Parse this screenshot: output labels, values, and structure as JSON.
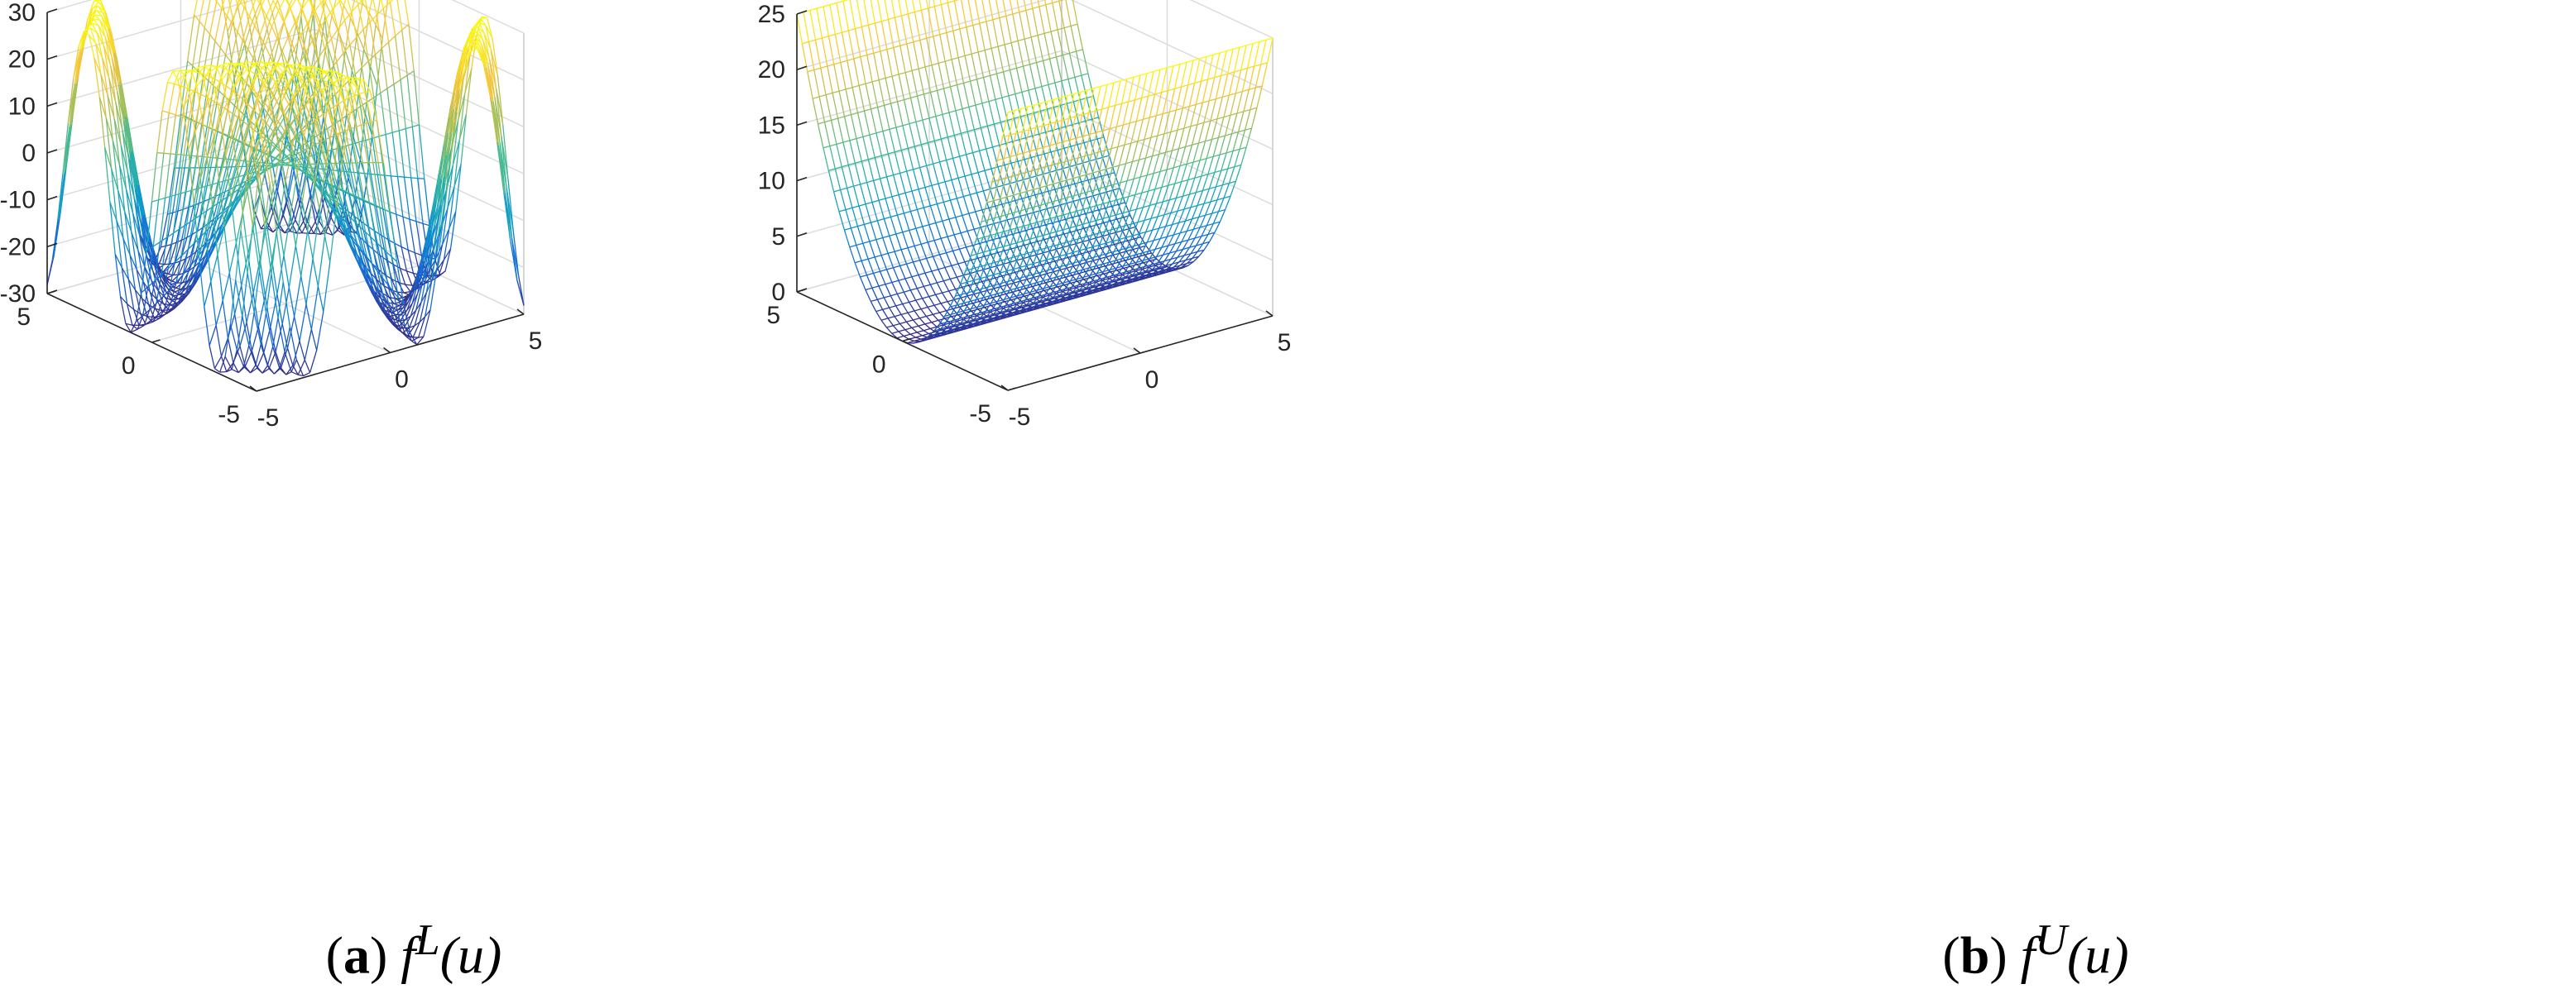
{
  "chart_data": [
    {
      "type": "surface",
      "panel_label": "(a)",
      "caption": "f^L(u)",
      "caption_parts": {
        "tag_open": "(",
        "tag": "a",
        "tag_close": ")",
        "f": "f",
        "sup": "L",
        "arg": "(u)"
      },
      "x": {
        "lim": [
          -5,
          5
        ],
        "ticks": [
          -5,
          0,
          5
        ]
      },
      "y": {
        "lim": [
          -5,
          5
        ],
        "ticks": [
          -5,
          0,
          5
        ]
      },
      "z": {
        "lim": [
          -30,
          30
        ],
        "ticks": [
          -30,
          -20,
          -10,
          0,
          10,
          20,
          30
        ]
      },
      "surface": "z = 30 * sin(0.3 * x * y) over a 41 x 41 grid",
      "colormap": "parula",
      "style": "mesh",
      "grid": true
    },
    {
      "type": "surface",
      "panel_label": "(b)",
      "caption": "f^U(u)",
      "caption_parts": {
        "tag_open": "(",
        "tag": "b",
        "tag_close": ")",
        "f": "f",
        "sup": "U",
        "arg": "(u)"
      },
      "x": {
        "lim": [
          -5,
          5
        ],
        "ticks": [
          -5,
          0,
          5
        ]
      },
      "y": {
        "lim": [
          -5,
          5
        ],
        "ticks": [
          -5,
          0,
          5
        ]
      },
      "z": {
        "lim": [
          0,
          25
        ],
        "ticks": [
          0,
          5,
          10,
          15,
          20,
          25
        ]
      },
      "surface": "z = y^2 over a 41 x 41 grid",
      "colormap": "parula",
      "style": "mesh",
      "grid": true
    }
  ]
}
